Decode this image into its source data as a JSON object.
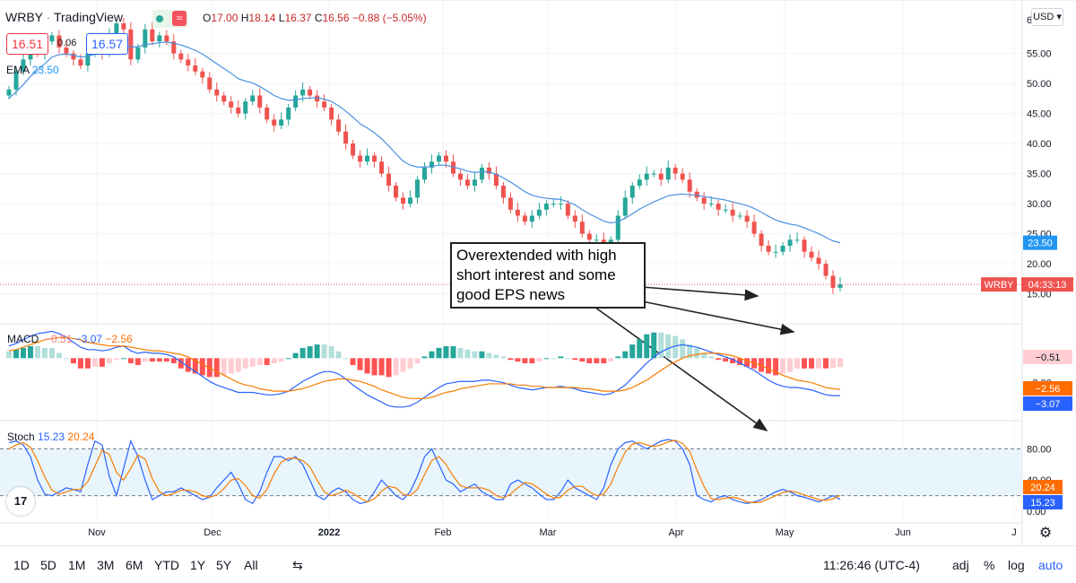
{
  "header": {
    "symbol": "WRBY",
    "separator": "·",
    "source": "TradingView",
    "ohlc": [
      {
        "k": "O",
        "v": "17.00"
      },
      {
        "k": "H",
        "v": "18.14"
      },
      {
        "k": "L",
        "v": "16.37"
      },
      {
        "k": "C",
        "v": "16.56"
      },
      {
        "k": "",
        "v": "−0.88 (−5.05%)"
      }
    ],
    "bid": "16.51",
    "spread": "0.06",
    "ask": "16.57",
    "currency": "USD"
  },
  "indicators": {
    "ema": {
      "label": "EMA",
      "value": "23.50"
    },
    "macd": {
      "label": "MACD",
      "hist": "−0.51",
      "macd": "−3.07",
      "signal": "−2.56"
    },
    "stoch": {
      "label": "Stoch",
      "k": "15.23",
      "d": "20.24"
    }
  },
  "annotation": "Overextended with high short interest and some good EPS news",
  "price_badges": {
    "ema": "23.50",
    "symbol": "WRBY",
    "countdown": "04:33:13"
  },
  "macd_badges": {
    "hist": "−0.51",
    "signal": "−2.56",
    "macd": "−3.07"
  },
  "stoch_badges": {
    "d": "20.24",
    "k": "15.23"
  },
  "toolbar": {
    "ranges": [
      "1D",
      "5D",
      "1M",
      "3M",
      "6M",
      "YTD",
      "1Y",
      "5Y",
      "All"
    ],
    "time": "11:26:46 (UTC-4)",
    "adj": "adj",
    "pct": "%",
    "log": "log",
    "auto": "auto"
  },
  "colors": {
    "up": "#26a69a",
    "down": "#ef5350",
    "ema": "#4a90e2",
    "macd": "#2962ff",
    "signal": "#f57c00"
  },
  "chart_data": {
    "type": "candlestick",
    "x_ticks": [
      "Nov",
      "Dec",
      "2022",
      "Feb",
      "Mar",
      "Apr",
      "May",
      "Jun",
      "J"
    ],
    "price_ticks": [
      "55.00",
      "50.00",
      "45.00",
      "40.00",
      "35.00",
      "30.00",
      "25.00",
      "20.00",
      "15.00"
    ],
    "price_top_tick": "6",
    "macd_ticks": [
      "0.00",
      "−2.00",
      "−4.00"
    ],
    "stoch_ticks": [
      "80.00",
      "40.00",
      "0.00"
    ],
    "ylim": [
      12.7,
      63
    ],
    "closes": [
      49,
      52,
      54,
      56,
      55,
      57,
      58,
      56,
      55,
      54,
      53,
      55,
      57,
      55,
      58,
      60,
      59,
      54,
      56,
      59,
      57,
      58,
      57,
      55,
      54,
      53,
      52,
      51,
      49,
      48,
      47,
      46,
      45,
      47,
      48,
      46,
      44,
      43,
      44,
      46,
      48,
      49,
      48,
      47,
      46,
      44,
      42,
      40,
      38,
      37,
      38,
      37,
      35,
      33,
      31,
      30,
      31,
      34,
      36,
      37,
      38,
      37,
      35,
      34,
      33,
      34,
      36,
      35,
      33,
      31,
      29,
      28,
      27,
      28,
      29,
      30,
      30,
      30,
      28,
      27,
      25,
      24,
      24,
      23,
      24,
      28,
      31,
      33,
      34,
      35,
      35,
      34,
      36,
      35,
      34,
      32,
      31,
      30,
      30,
      29,
      29,
      28,
      28,
      27,
      25,
      23,
      22,
      22,
      23,
      24,
      24,
      22,
      21,
      20,
      18,
      16,
      16.56
    ],
    "ema": [
      47.5,
      48.6,
      49.8,
      51.2,
      52.2,
      53.3,
      54.4,
      54.8,
      54.9,
      54.7,
      54.4,
      54.5,
      54.9,
      54.9,
      55.4,
      56.1,
      56.5,
      56.1,
      56.1,
      56.5,
      56.6,
      56.8,
      56.9,
      56.7,
      56.4,
      56.0,
      55.5,
      54.9,
      54.1,
      53.3,
      52.5,
      51.7,
      50.8,
      50.4,
      50.1,
      49.5,
      48.8,
      48.0,
      47.5,
      47.2,
      47.3,
      47.5,
      47.6,
      47.6,
      47.4,
      47.0,
      46.3,
      45.4,
      44.4,
      43.3,
      42.6,
      41.8,
      40.8,
      39.6,
      38.3,
      37.1,
      36.4,
      36.1,
      36.1,
      36.2,
      36.4,
      36.4,
      36.1,
      35.8,
      35.4,
      35.2,
      35.3,
      35.3,
      34.9,
      34.3,
      33.6,
      32.8,
      32.0,
      31.4,
      31.1,
      30.9,
      30.8,
      30.7,
      30.3,
      29.8,
      29.0,
      28.3,
      27.7,
      27.1,
      26.8,
      27.0,
      27.6,
      28.3,
      29.1,
      29.7,
      30.3,
      30.8,
      31.3,
      31.5,
      31.6,
      31.5,
      31.4,
      31.2,
      31.0,
      30.8,
      30.6,
      30.3,
      30.0,
      29.7,
      29.2,
      28.6,
      27.9,
      27.3,
      26.9,
      26.6,
      26.4,
      26.0,
      25.5,
      25.0,
      24.4,
      23.8,
      23.5
    ],
    "macd": [
      1.0,
      1.2,
      1.5,
      1.8,
      2.0,
      2.1,
      2.2,
      2.0,
      1.7,
      1.3,
      0.9,
      0.7,
      0.7,
      0.6,
      0.7,
      0.9,
      1.0,
      0.6,
      0.4,
      0.5,
      0.4,
      0.4,
      0.3,
      0.1,
      -0.3,
      -0.7,
      -1.1,
      -1.5,
      -1.9,
      -2.2,
      -2.4,
      -2.6,
      -2.8,
      -2.8,
      -2.8,
      -2.9,
      -3.0,
      -3.0,
      -2.9,
      -2.7,
      -2.3,
      -1.9,
      -1.6,
      -1.3,
      -1.1,
      -1.1,
      -1.3,
      -1.7,
      -2.2,
      -2.6,
      -3.0,
      -3.3,
      -3.6,
      -3.9,
      -4.0,
      -4.0,
      -3.9,
      -3.6,
      -3.2,
      -2.8,
      -2.4,
      -2.1,
      -2.0,
      -1.9,
      -1.9,
      -1.9,
      -1.8,
      -1.8,
      -1.9,
      -2.0,
      -2.2,
      -2.4,
      -2.5,
      -2.6,
      -2.5,
      -2.4,
      -2.4,
      -2.3,
      -2.4,
      -2.5,
      -2.7,
      -2.8,
      -2.9,
      -3.0,
      -2.9,
      -2.6,
      -2.2,
      -1.6,
      -1.0,
      -0.4,
      0.1,
      0.5,
      0.8,
      1.0,
      1.1,
      1.0,
      0.9,
      0.7,
      0.5,
      0.3,
      0.1,
      -0.1,
      -0.4,
      -0.7,
      -1.0,
      -1.4,
      -1.8,
      -2.1,
      -2.3,
      -2.4,
      -2.4,
      -2.5,
      -2.6,
      -2.8,
      -3.0,
      -3.07,
      -3.07
    ],
    "signal": [
      0.6,
      0.7,
      0.9,
      1.1,
      1.3,
      1.5,
      1.6,
      1.7,
      1.7,
      1.6,
      1.5,
      1.3,
      1.2,
      1.1,
      1.0,
      1.0,
      1.0,
      0.9,
      0.8,
      0.7,
      0.6,
      0.6,
      0.5,
      0.4,
      0.3,
      0.1,
      -0.2,
      -0.5,
      -0.8,
      -1.1,
      -1.4,
      -1.7,
      -2.0,
      -2.2,
      -2.3,
      -2.5,
      -2.6,
      -2.7,
      -2.7,
      -2.7,
      -2.6,
      -2.5,
      -2.3,
      -2.1,
      -1.9,
      -1.8,
      -1.7,
      -1.7,
      -1.8,
      -1.9,
      -2.1,
      -2.3,
      -2.6,
      -2.8,
      -3.0,
      -3.2,
      -3.3,
      -3.3,
      -3.3,
      -3.2,
      -3.0,
      -2.8,
      -2.7,
      -2.5,
      -2.4,
      -2.3,
      -2.2,
      -2.1,
      -2.1,
      -2.1,
      -2.1,
      -2.2,
      -2.2,
      -2.3,
      -2.3,
      -2.4,
      -2.4,
      -2.4,
      -2.4,
      -2.4,
      -2.5,
      -2.5,
      -2.6,
      -2.7,
      -2.7,
      -2.7,
      -2.6,
      -2.4,
      -2.1,
      -1.8,
      -1.4,
      -1.0,
      -0.6,
      -0.3,
      0.0,
      0.2,
      0.3,
      0.4,
      0.4,
      0.4,
      0.3,
      0.2,
      0.0,
      -0.2,
      -0.4,
      -0.6,
      -0.9,
      -1.1,
      -1.4,
      -1.6,
      -1.8,
      -1.9,
      -2.0,
      -2.2,
      -2.4,
      -2.5,
      -2.56
    ],
    "stoch_k": [
      88,
      90,
      85,
      70,
      40,
      22,
      20,
      25,
      30,
      28,
      25,
      60,
      90,
      85,
      45,
      20,
      55,
      90,
      70,
      40,
      15,
      20,
      25,
      25,
      30,
      25,
      20,
      15,
      18,
      30,
      40,
      50,
      35,
      15,
      10,
      25,
      50,
      70,
      70,
      65,
      70,
      60,
      40,
      20,
      15,
      25,
      30,
      25,
      15,
      10,
      12,
      25,
      40,
      30,
      20,
      15,
      25,
      45,
      70,
      80,
      60,
      40,
      35,
      25,
      30,
      35,
      25,
      20,
      15,
      15,
      35,
      40,
      35,
      30,
      22,
      15,
      15,
      25,
      40,
      30,
      25,
      20,
      15,
      30,
      60,
      80,
      88,
      90,
      85,
      80,
      85,
      90,
      92,
      90,
      80,
      60,
      20,
      15,
      12,
      18,
      20,
      15,
      12,
      10,
      12,
      15,
      20,
      25,
      28,
      25,
      20,
      18,
      15,
      12,
      16,
      20,
      15.23
    ],
    "stoch_d": [
      80,
      85,
      88,
      82,
      65,
      44,
      27,
      22,
      25,
      28,
      28,
      38,
      58,
      78,
      73,
      50,
      40,
      55,
      72,
      67,
      42,
      25,
      20,
      23,
      27,
      27,
      25,
      20,
      18,
      21,
      29,
      40,
      42,
      33,
      20,
      17,
      28,
      48,
      63,
      68,
      68,
      65,
      57,
      40,
      25,
      20,
      23,
      27,
      23,
      17,
      12,
      16,
      26,
      32,
      30,
      22,
      20,
      28,
      47,
      65,
      70,
      60,
      45,
      33,
      30,
      30,
      30,
      27,
      20,
      17,
      22,
      30,
      37,
      35,
      29,
      22,
      17,
      18,
      27,
      32,
      32,
      25,
      20,
      22,
      35,
      57,
      76,
      86,
      88,
      85,
      83,
      85,
      89,
      91,
      87,
      77,
      53,
      32,
      16,
      15,
      17,
      18,
      16,
      12,
      11,
      12,
      16,
      20,
      24,
      26,
      24,
      21,
      18,
      15,
      14,
      16,
      20.24
    ]
  }
}
